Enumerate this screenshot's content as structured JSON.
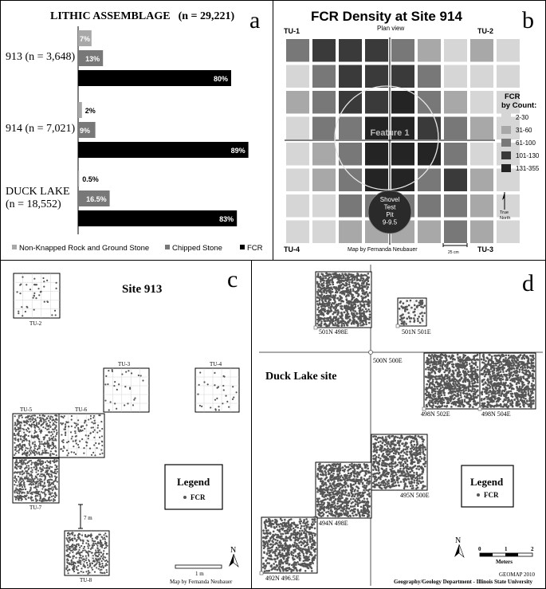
{
  "colors": {
    "black": "#000000",
    "dark": "#3a3a3a",
    "mid": "#787878",
    "light": "#a8a8a8",
    "pale": "#d6d6d6",
    "grey_bar": "#a8a8a8",
    "chipped": "#787878",
    "fcr": "#000000"
  },
  "panel_a": {
    "letter": "a",
    "title_prefix": "LITHIC ASSEMBLAGE",
    "title_n": "(n = 29,221)",
    "chart_data": {
      "type": "bar",
      "orientation": "horizontal",
      "title": "LITHIC ASSEMBLAGE (n = 29,221)",
      "categories": [
        "913 (n = 3,648)",
        "914 (n = 7,021)",
        "DUCK LAKE (n = 18,552)"
      ],
      "category_lines": [
        [
          "913 (n = 3,648)"
        ],
        [
          "914 (n = 7,021)"
        ],
        [
          "DUCK LAKE",
          "(n = 18,552)"
        ]
      ],
      "series": [
        {
          "name": "Non-Knapped Rock and Ground Stone",
          "values": [
            7,
            2,
            0.5
          ],
          "labels": [
            "7%",
            "2%",
            "0.5%"
          ],
          "color": "#a8a8a8"
        },
        {
          "name": "Chipped Stone",
          "values": [
            13,
            9,
            16.5
          ],
          "labels": [
            "13%",
            "9%",
            "16.5%"
          ],
          "color": "#787878"
        },
        {
          "name": "FCR",
          "values": [
            80,
            89,
            83
          ],
          "labels": [
            "80%",
            "89%",
            "83%"
          ],
          "color": "#000000"
        }
      ],
      "legend_position": "bottom"
    }
  },
  "panel_b": {
    "letter": "b",
    "title": "FCR Density at Site 914",
    "subtitle": "Plan view",
    "corners": {
      "tl": "TU-1",
      "tr": "TU-2",
      "bl": "TU-4",
      "br": "TU-3"
    },
    "feature_label": "Feature 1",
    "shovel_lines": [
      "Shovel",
      "Test",
      "Pit",
      "9-9.5"
    ],
    "legend_title_lines": [
      "FCR",
      "by Count:"
    ],
    "legend": [
      {
        "label": "2-30",
        "color": "#d6d6d6"
      },
      {
        "label": "31-60",
        "color": "#a8a8a8"
      },
      {
        "label": "61-100",
        "color": "#787878"
      },
      {
        "label": "101-130",
        "color": "#3a3a3a"
      },
      {
        "label": "131-355",
        "color": "#242424"
      }
    ],
    "credit": "Map by Fernanda Neubauer",
    "scale_label": "25 cm",
    "north_lines": [
      "True",
      "North"
    ],
    "grid_classes": [
      [
        3,
        4,
        4,
        4,
        3,
        2,
        1,
        2,
        1
      ],
      [
        1,
        3,
        4,
        4,
        4,
        3,
        1,
        1,
        1
      ],
      [
        2,
        3,
        4,
        4,
        5,
        3,
        2,
        1,
        1
      ],
      [
        1,
        3,
        3,
        5,
        5,
        4,
        3,
        2,
        1
      ],
      [
        1,
        2,
        3,
        5,
        5,
        5,
        3,
        1,
        1
      ],
      [
        1,
        2,
        3,
        5,
        5,
        3,
        4,
        2,
        1
      ],
      [
        1,
        1,
        3,
        3,
        3,
        3,
        3,
        2,
        1
      ],
      [
        1,
        1,
        2,
        2,
        2,
        2,
        3,
        2,
        1
      ]
    ]
  },
  "panel_c": {
    "letter": "c",
    "title": "Site 913",
    "units": [
      {
        "name": "TU-2",
        "density": 40
      },
      {
        "name": "TU-3",
        "density": 30
      },
      {
        "name": "TU-4",
        "density": 30
      },
      {
        "name": "TU-5",
        "density": 420
      },
      {
        "name": "TU-6",
        "density": 130
      },
      {
        "name": "TU-7",
        "density": 520
      },
      {
        "name": "TU-8",
        "density": 380
      }
    ],
    "legend_title": "Legend",
    "legend_item": "FCR",
    "scale_v": "7 m",
    "scale_h": "1 m",
    "north": "N",
    "credit": "Map by Fernanda Neubauer"
  },
  "panel_d": {
    "letter": "d",
    "title": "Duck Lake site",
    "units": [
      {
        "name": "501N 498E",
        "density": 900
      },
      {
        "name": "501N 501E",
        "density": 80
      },
      {
        "name": "498N 502E",
        "density": 900
      },
      {
        "name": "498N 504E",
        "density": 900
      },
      {
        "name": "495N 500E",
        "density": 700
      },
      {
        "name": "494N 498E",
        "density": 800
      },
      {
        "name": "492N 496.5E",
        "density": 700
      }
    ],
    "datum": "500N 500E",
    "legend_title": "Legend",
    "legend_item": "FCR",
    "north": "N",
    "scale_ticks": [
      "0",
      "1",
      "2"
    ],
    "scale_unit": "Meters",
    "credit_lines": [
      "GEOMAP 2010",
      "Geography/Geology Department - Illinois State University"
    ]
  }
}
